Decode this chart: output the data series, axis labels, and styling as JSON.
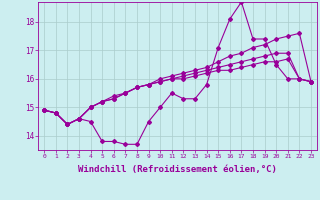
{
  "background_color": "#cceef0",
  "grid_color": "#aacccc",
  "line_color": "#990099",
  "xlabel": "Windchill (Refroidissement éolien,°C)",
  "xlabel_fontsize": 6.5,
  "ylabel_ticks": [
    14,
    15,
    16,
    17,
    18
  ],
  "xtick_labels": [
    "0",
    "1",
    "2",
    "3",
    "4",
    "5",
    "6",
    "7",
    "8",
    "9",
    "10",
    "11",
    "12",
    "13",
    "14",
    "15",
    "16",
    "17",
    "18",
    "19",
    "20",
    "21",
    "22",
    "23"
  ],
  "ylim": [
    13.5,
    18.7
  ],
  "xlim": [
    -0.5,
    23.5
  ],
  "series": [
    [
      14.9,
      14.8,
      14.4,
      14.6,
      14.5,
      13.8,
      13.8,
      13.7,
      13.7,
      14.5,
      15.0,
      15.5,
      15.3,
      15.3,
      15.8,
      17.1,
      18.1,
      18.7,
      17.4,
      17.4,
      16.5,
      16.0,
      16.0,
      15.9
    ],
    [
      14.9,
      14.8,
      14.4,
      14.6,
      15.0,
      15.2,
      15.3,
      15.5,
      15.7,
      15.8,
      16.0,
      16.1,
      16.2,
      16.3,
      16.4,
      16.6,
      16.8,
      16.9,
      17.1,
      17.2,
      17.4,
      17.5,
      17.6,
      15.9
    ],
    [
      14.9,
      14.8,
      14.4,
      14.6,
      15.0,
      15.2,
      15.3,
      15.5,
      15.7,
      15.8,
      15.9,
      16.0,
      16.1,
      16.2,
      16.3,
      16.4,
      16.5,
      16.6,
      16.7,
      16.8,
      16.9,
      16.9,
      16.0,
      15.9
    ],
    [
      14.9,
      14.8,
      14.4,
      14.6,
      15.0,
      15.2,
      15.4,
      15.5,
      15.7,
      15.8,
      15.9,
      16.0,
      16.0,
      16.1,
      16.2,
      16.3,
      16.3,
      16.4,
      16.5,
      16.6,
      16.6,
      16.7,
      16.0,
      15.9
    ]
  ],
  "marker": "D",
  "markersize": 2.0,
  "linewidth": 0.8
}
